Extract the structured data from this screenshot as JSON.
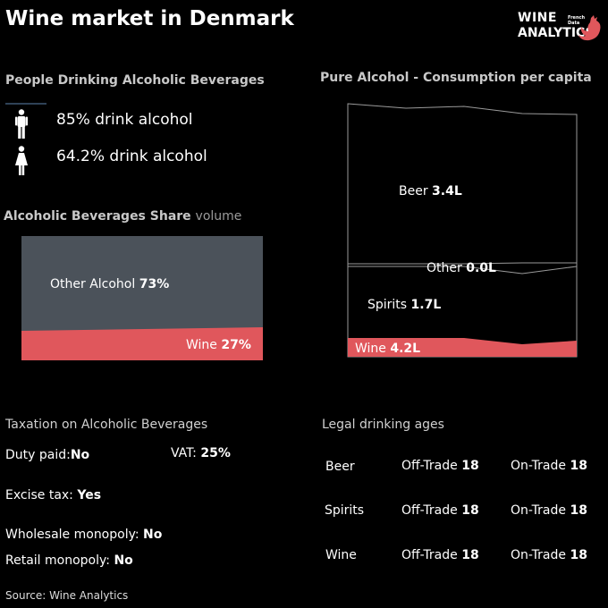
{
  "title": "Wine market in Denmark",
  "logo": {
    "line1": "WINE",
    "line2": "ANALYTICS",
    "tag1": "French",
    "tag2": "Data"
  },
  "people": {
    "heading": "People Drinking Alcoholic Beverages",
    "male_value": "85%",
    "male_text": "drink alcohol",
    "female_value": "64.2%",
    "female_text": "drink alcohol"
  },
  "share": {
    "heading": "Alcoholic Beverages Share",
    "heading_light": "volume"
  },
  "consumption": {
    "heading": "Pure Alcohol - Consumption per capita"
  },
  "chart_data": [
    {
      "type": "area",
      "title": "Alcoholic Beverages Share volume",
      "categories": [
        "Other Alcohol",
        "Wine"
      ],
      "values": [
        73,
        27
      ],
      "value_labels": [
        "73%",
        "27%"
      ],
      "unit": "%",
      "colors": [
        "#4b525a",
        "#e0575c"
      ]
    },
    {
      "type": "area",
      "title": "Pure Alcohol - Consumption per capita",
      "categories": [
        "Beer",
        "Other",
        "Spirits",
        "Wine"
      ],
      "values": [
        3.4,
        0.0,
        1.7,
        4.2
      ],
      "value_labels": [
        "3.4L",
        "0.0L",
        "1.7L",
        "4.2L"
      ],
      "unit": "L",
      "colors": [
        "#000000",
        "#000000",
        "#000000",
        "#e0575c"
      ]
    }
  ],
  "taxation": {
    "heading": "Taxation on Alcoholic Beverages",
    "duty_label": "Duty paid:",
    "duty_value": "No",
    "vat_label": "VAT:",
    "vat_value": "25%",
    "excise_label": "Excise tax:",
    "excise_value": "Yes",
    "wholesale_label": "Wholesale monopoly:",
    "wholesale_value": "No",
    "retail_label": "Retail monopoly:",
    "retail_value": "No"
  },
  "ages": {
    "heading": "Legal drinking ages",
    "off_label": "Off-Trade",
    "on_label": "On-Trade",
    "rows": [
      {
        "name": "Beer",
        "off": "18",
        "on": "18"
      },
      {
        "name": "Spirits",
        "off": "18",
        "on": "18"
      },
      {
        "name": "Wine",
        "off": "18",
        "on": "18"
      }
    ]
  },
  "source": "Source: Wine Analytics"
}
